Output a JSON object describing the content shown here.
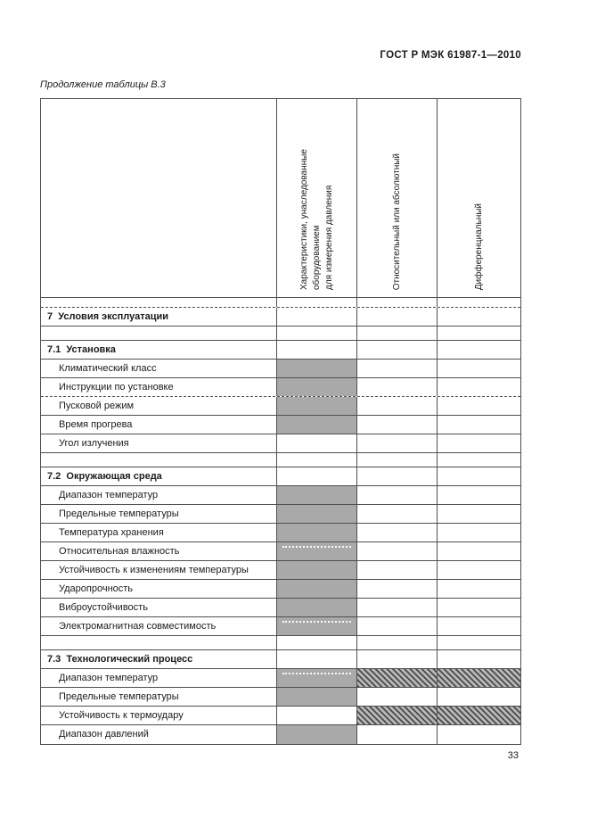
{
  "page": {
    "doc_number": "ГОСТ Р МЭК 61987-1—2010",
    "table_caption": "Продолжение таблицы В.3",
    "page_number": "33"
  },
  "colors": {
    "cell_gray": "#a9a9a9",
    "hatch_dark": "#4a4a4a",
    "hatch_light": "#b7b7b7",
    "border": "#4f4f4f",
    "text": "#1b1b1b"
  },
  "table": {
    "columns": [
      {
        "id": "row-label",
        "header": ""
      },
      {
        "id": "inherited-characteristics",
        "header": "Характеристики, унаследованные оборудованием\nдля измерения давления"
      },
      {
        "id": "relative-or-absolute",
        "header": "Относительный или абсолютный"
      },
      {
        "id": "differential",
        "header": "Дифференциальный"
      }
    ],
    "legend": {
      "gray_fill": "ячейка с серой заливкой",
      "hatch_fill": "ячейка со штриховкой"
    },
    "rows": [
      {
        "type": "spacer-thin",
        "label": "",
        "border": "dashed"
      },
      {
        "type": "section",
        "label": "7  Условия эксплуатации"
      },
      {
        "type": "spacer",
        "label": ""
      },
      {
        "type": "section",
        "label": "7.1  Установка"
      },
      {
        "type": "item",
        "label": "Климатический класс",
        "c2": "gray"
      },
      {
        "type": "item",
        "label": "Инструкции по установке",
        "c2": "gray",
        "border": "dashed"
      },
      {
        "type": "item",
        "label": "Пусковой режим",
        "c2": "gray"
      },
      {
        "type": "item",
        "label": "Время прогрева",
        "c2": "gray"
      },
      {
        "type": "item",
        "label": "Угол излучения",
        "c2": "plain"
      },
      {
        "type": "spacer",
        "label": ""
      },
      {
        "type": "section",
        "label": "7.2  Окружающая среда"
      },
      {
        "type": "item",
        "label": "Диапазон температур",
        "c2": "gray"
      },
      {
        "type": "item",
        "label": "Предельные температуры",
        "c2": "gray"
      },
      {
        "type": "item",
        "label": "Температура хранения",
        "c2": "gray"
      },
      {
        "type": "item",
        "label": "Относительная влажность",
        "c2": "gray",
        "dots": true
      },
      {
        "type": "item",
        "label": "Устойчивость к изменениям температуры",
        "c2": "gray"
      },
      {
        "type": "item",
        "label": "Ударопрочность",
        "c2": "gray"
      },
      {
        "type": "item",
        "label": "Виброустойчивость",
        "c2": "gray"
      },
      {
        "type": "item",
        "label": "Электромагнитная совместимость",
        "c2": "gray",
        "dots": true
      },
      {
        "type": "spacer",
        "label": ""
      },
      {
        "type": "section",
        "label": "7.3  Технологический процесс"
      },
      {
        "type": "item",
        "label": "Диапазон температур",
        "c2": "gray",
        "dots": true,
        "c34": "hatch"
      },
      {
        "type": "item",
        "label": "Предельные температуры",
        "c2": "gray"
      },
      {
        "type": "item",
        "label": "Устойчивость к термоудару",
        "c2": "plain",
        "c34": "hatch"
      },
      {
        "type": "item",
        "label": "Диапазон давлений",
        "c2": "gray"
      }
    ]
  }
}
